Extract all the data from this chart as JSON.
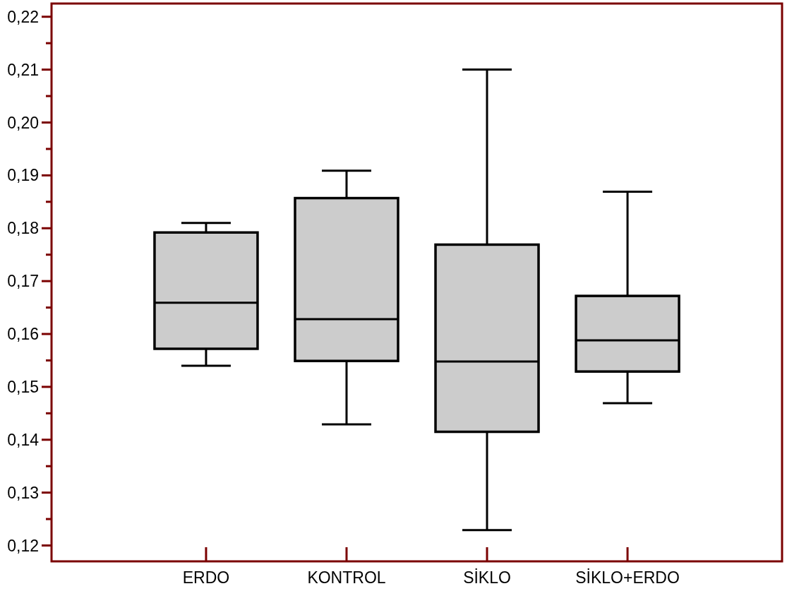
{
  "chart_data": {
    "type": "box",
    "categories": [
      "ERDO",
      "KONTROL",
      "SİKLO",
      "SİKLO+ERDO"
    ],
    "color": "#cccccc",
    "boxes": [
      {
        "low": 0.154,
        "q1": 0.1572,
        "median": 0.1659,
        "q3": 0.1792,
        "high": 0.181
      },
      {
        "low": 0.1429,
        "q1": 0.1549,
        "median": 0.1628,
        "q3": 0.1857,
        "high": 0.1909
      },
      {
        "low": 0.1229,
        "q1": 0.1415,
        "median": 0.1548,
        "q3": 0.1769,
        "high": 0.21
      },
      {
        "low": 0.1469,
        "q1": 0.1529,
        "median": 0.1588,
        "q3": 0.1672,
        "high": 0.1869
      }
    ],
    "ylim": [
      0.117,
      0.2225
    ],
    "yticks": [
      {
        "value": 0.12,
        "label": "0,12"
      },
      {
        "value": 0.125,
        "label": null
      },
      {
        "value": 0.13,
        "label": "0,13"
      },
      {
        "value": 0.135,
        "label": null
      },
      {
        "value": 0.14,
        "label": "0,14"
      },
      {
        "value": 0.145,
        "label": null
      },
      {
        "value": 0.15,
        "label": "0,15"
      },
      {
        "value": 0.155,
        "label": null
      },
      {
        "value": 0.16,
        "label": "0,16"
      },
      {
        "value": 0.165,
        "label": null
      },
      {
        "value": 0.17,
        "label": "0,17"
      },
      {
        "value": 0.175,
        "label": null
      },
      {
        "value": 0.18,
        "label": "0,18"
      },
      {
        "value": 0.185,
        "label": null
      },
      {
        "value": 0.19,
        "label": "0,19"
      },
      {
        "value": 0.195,
        "label": null
      },
      {
        "value": 0.2,
        "label": "0,20"
      },
      {
        "value": 0.205,
        "label": null
      },
      {
        "value": 0.21,
        "label": "0,21"
      },
      {
        "value": 0.215,
        "label": null
      },
      {
        "value": 0.22,
        "label": "0,22"
      }
    ]
  }
}
